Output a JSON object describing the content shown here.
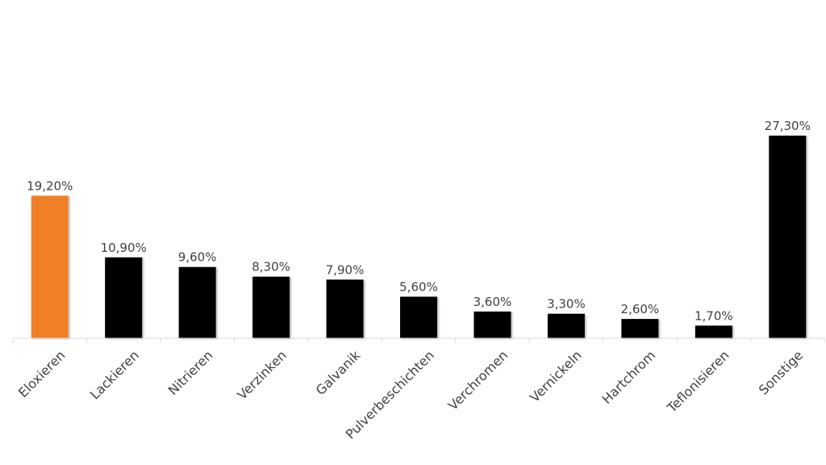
{
  "chart_data": {
    "type": "bar",
    "categories": [
      "Eloxieren",
      "Lackieren",
      "Nitrieren",
      "Verzinken",
      "Galvanik",
      "Pulverbeschichten",
      "Verchromen",
      "Vernickeln",
      "Hartchrom",
      "Teflonisieren",
      "Sonstige"
    ],
    "values": [
      19.2,
      10.9,
      9.6,
      8.3,
      7.9,
      5.6,
      3.6,
      3.3,
      2.6,
      1.7,
      27.3
    ],
    "value_labels": [
      "19,20%",
      "10,90%",
      "9,60%",
      "8,30%",
      "7,90%",
      "5,60%",
      "3,60%",
      "3,30%",
      "2,60%",
      "1,70%",
      "27,30%"
    ],
    "highlight_index": 0,
    "colors": {
      "highlight": "#f07f26",
      "bar": "#000000",
      "axis": "#d9d9d9",
      "text": "#404040"
    },
    "ylim": [
      0,
      27.3
    ],
    "grid": false,
    "legend": "none"
  }
}
